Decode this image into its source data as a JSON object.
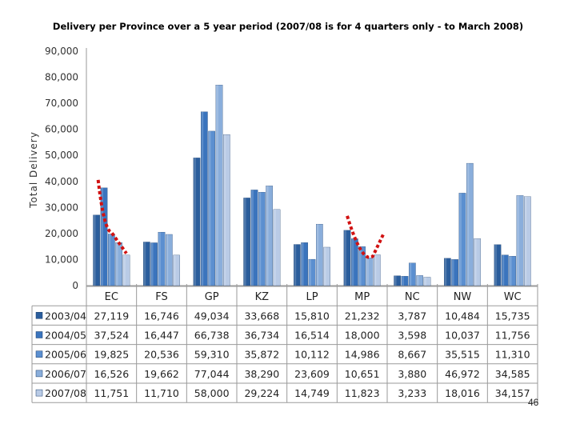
{
  "page_number": "46",
  "chart_data": {
    "type": "bar",
    "title": "Delivery per Province over a 5 year period (2007/08 is for 4 quarters only - to March 2008)",
    "ylabel": "Total Delivery",
    "xlabel": "",
    "ylim": [
      0,
      90000
    ],
    "yticks": [
      "0",
      "10,000",
      "20,000",
      "30,000",
      "40,000",
      "50,000",
      "60,000",
      "70,000",
      "80,000",
      "90,000"
    ],
    "grid": false,
    "legend": "data-table-below",
    "categories": [
      "EC",
      "FS",
      "GP",
      "KZ",
      "LP",
      "MP",
      "NC",
      "NW",
      "WC"
    ],
    "series": [
      {
        "name": "2003/04",
        "color": "#2a5d9c",
        "values": [
          27119,
          16746,
          49034,
          33668,
          15810,
          21232,
          3787,
          10484,
          15735
        ],
        "labels": [
          "27,119",
          "16,746",
          "49,034",
          "33,668",
          "15,810",
          "21,232",
          "3,787",
          "10,484",
          "15,735"
        ]
      },
      {
        "name": "2004/05",
        "color": "#3a74bd",
        "values": [
          37524,
          16447,
          66738,
          36734,
          16514,
          18000,
          3598,
          10037,
          11756
        ],
        "labels": [
          "37,524",
          "16,447",
          "66,738",
          "36,734",
          "16,514",
          "18,000",
          "3,598",
          "10,037",
          "11,756"
        ]
      },
      {
        "name": "2005/06",
        "color": "#5b8fd0",
        "values": [
          19825,
          20536,
          59310,
          35872,
          10112,
          14986,
          8667,
          35515,
          11310
        ],
        "labels": [
          "19,825",
          "20,536",
          "59,310",
          "35,872",
          "10,112",
          "14,986",
          "8,667",
          "35,515",
          "11,310"
        ]
      },
      {
        "name": "2006/07",
        "color": "#8aaedb",
        "values": [
          16526,
          19662,
          77044,
          38290,
          23609,
          10651,
          3880,
          46972,
          34585
        ],
        "labels": [
          "16,526",
          "19,662",
          "77,044",
          "38,290",
          "23,609",
          "10,651",
          "3,880",
          "46,972",
          "34,585"
        ]
      },
      {
        "name": "2007/08",
        "color": "#b9cbe6",
        "values": [
          11751,
          11710,
          58000,
          29224,
          14749,
          11823,
          3233,
          18016,
          34157
        ],
        "labels": [
          "11,751",
          "11,710",
          "58,000",
          "29,224",
          "14,749",
          "11,823",
          "3,233",
          "18,016",
          "34,157"
        ]
      }
    ],
    "annotations": [
      {
        "type": "red-dotted-trend",
        "category": "EC"
      },
      {
        "type": "red-dotted-trend",
        "category": "MP"
      }
    ]
  }
}
